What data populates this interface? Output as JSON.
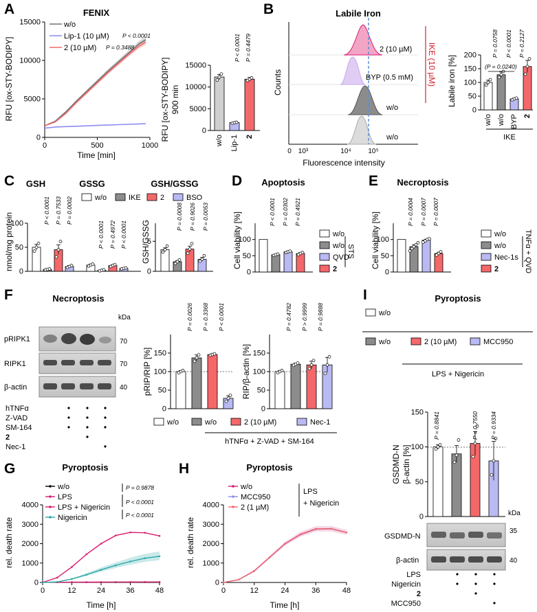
{
  "colors": {
    "wo": "#ffffff",
    "grey": "#8c8c8c",
    "red": "#f4686a",
    "lav": "#b9b9f3",
    "pink": "#d9196f",
    "teal": "#2aa7a7",
    "ikeRed": "#d21f2a",
    "blot": "#cfcfcf"
  },
  "panels": {
    "A": {
      "letter": "A",
      "title": "FENIX"
    },
    "B": {
      "letter": "B",
      "title": "Labile Iron"
    },
    "C": {
      "letter": "C",
      "title": "GSH",
      "title2": "GSSG",
      "title3": "GSH/GSSG"
    },
    "D": {
      "letter": "D",
      "title": "Apoptosis"
    },
    "E": {
      "letter": "E",
      "title": "Necroptosis"
    },
    "F": {
      "letter": "F",
      "title": "Necroptosis"
    },
    "G": {
      "letter": "G",
      "title": "Pyroptosis"
    },
    "H": {
      "letter": "H",
      "title": "Pyroptosis"
    },
    "I": {
      "letter": "I",
      "title": "Pyroptosis"
    }
  },
  "A": {
    "ylabel": "RFU [ox-STY-BODIPY]",
    "xlabel": "Time [min]",
    "legend": [
      "w/o",
      "Lip-1 (10 µM)",
      "2 (10 µM)"
    ],
    "legend_p": [
      "P < 0.0001",
      "P = 0.3488"
    ],
    "bar_ylabel": "RFU [ox-STY-BODIPY]",
    "bar_ylabel2": "900 min",
    "bar_cats": [
      "w/o",
      "Lip-1",
      "2"
    ],
    "bar_p": [
      "P < 0.0001",
      "P = 0.4479"
    ]
  },
  "B": {
    "hist_labels": [
      "2 (10 µM)",
      "BYP (0.5 mM)",
      "w/o",
      "w/o"
    ],
    "counts": "Counts",
    "xlabel": "Fluorescence intensity",
    "ike_vertical": "IKE (10 µM)",
    "bar_ylabel": "Labile iron [%]",
    "bar_cats": [
      "w/o",
      "w/o",
      "BYP",
      "2"
    ],
    "ike": "IKE",
    "bar_p": [
      "P = 0.0758",
      "P < 0.0001",
      "P = 0.2127"
    ],
    "bracket_p": "(P = 0.0240)"
  },
  "C": {
    "legend": [
      "w/o",
      "IKE",
      "2",
      "BSO"
    ],
    "ylabel": "nmol/mg protein",
    "ylabel2": "GSH/GSSG",
    "p_gsh": [
      "P < 0.0001",
      "P = 0.7533",
      "P = 0.0002"
    ],
    "p_gssg": [
      "P < 0.0001",
      "P = 0.4972",
      "P < 0.0001"
    ],
    "p_ratio": [
      "P = 0.0008",
      "P = 0.9026",
      "P = 0.0053"
    ]
  },
  "D": {
    "ylabel": "Cell viability [%]",
    "p": [
      "P < 0.0001",
      "P = 0.0302",
      "P = 0.4921"
    ],
    "legend": [
      "w/o",
      "w/o",
      "QVD",
      "2"
    ],
    "treat": "STS"
  },
  "E": {
    "ylabel": "Cell viability [%]",
    "p": [
      "P = 0.0004",
      "P = 0.0007",
      "P = 0.0007"
    ],
    "legend": [
      "w/o",
      "w/o",
      "Nec-1s",
      "2"
    ],
    "treat": "TNFα + QVD"
  },
  "F": {
    "rows": [
      "pRIPK1",
      "RIPK1",
      "β-actin"
    ],
    "kda": "kDa",
    "mw": [
      "70",
      "70",
      "40"
    ],
    "treat_labels": [
      "hTNFα",
      "Z-VAD",
      "SM-164",
      "2",
      "Nec-1"
    ],
    "plot1_ylabel": "pRIP/RIP [%]",
    "plot2_ylabel": "RIP/β-actin [%]",
    "p1": [
      "P = 0.0026",
      "P = 0.3368",
      "P < 0.0001"
    ],
    "p2": [
      "P = 0.4782",
      "P > 0.9999",
      "P = 0.9888"
    ],
    "legend": [
      "w/o",
      "w/o",
      "2 (10 µM)",
      "Nec-1"
    ],
    "treat": "hTNFα + Z-VAD + SM-164"
  },
  "G": {
    "ylabel": "rel. death rate",
    "xlabel": "Time [h]",
    "legend": [
      "w/o",
      "LPS",
      "LPS + Nigericin",
      "Nigericin"
    ],
    "p": [
      "P = 0.9878",
      "P < 0.0001",
      "P < 0.0001"
    ]
  },
  "H": {
    "ylabel": "rel. death rate",
    "xlabel": "Time [h]",
    "legend": [
      "w/o",
      "MCC950",
      "2 (1 µM)"
    ],
    "treat1": "LPS",
    "treat2": "+ Nigericin"
  },
  "I": {
    "legend": [
      "w/o",
      "w/o",
      "2 (10 µM)",
      "MCC950"
    ],
    "treat": "LPS + Nigericin",
    "ylabel": "GSDMD-N",
    "ylabel2": "β-actin [%]",
    "p": [
      "P = 0.8841",
      "P = 0.7550",
      "P = 0.9334"
    ],
    "kda": "kDa",
    "blot_rows": [
      "GSDMD-N",
      "β-actin"
    ],
    "mw": [
      "35",
      "40"
    ],
    "treat_labels": [
      "LPS",
      "Nigericin",
      "2",
      "MCC950"
    ]
  },
  "chart_data": [
    {
      "id": "A-kinetics",
      "type": "line",
      "title": "FENIX",
      "xlabel": "Time [min]",
      "ylabel": "RFU [ox-STY-BODIPY]",
      "xlim": [
        0,
        1000
      ],
      "ylim": [
        0,
        15000
      ],
      "series": [
        {
          "name": "w/o",
          "x": [
            0,
            100,
            200,
            300,
            400,
            500,
            600,
            700,
            800,
            900,
            960
          ],
          "y": [
            1500,
            2100,
            3300,
            4700,
            6000,
            7300,
            8600,
            9800,
            11000,
            12200,
            12700
          ]
        },
        {
          "name": "Lip-1 (10 µM)",
          "x": [
            0,
            100,
            200,
            300,
            400,
            500,
            600,
            700,
            800,
            900,
            960
          ],
          "y": [
            1200,
            1350,
            1400,
            1450,
            1500,
            1550,
            1600,
            1650,
            1700,
            1750,
            1780
          ]
        },
        {
          "name": "2 (10 µM)",
          "x": [
            0,
            100,
            200,
            300,
            400,
            500,
            600,
            700,
            800,
            900,
            960
          ],
          "y": [
            1500,
            2000,
            3100,
            4500,
            5800,
            7100,
            8400,
            9600,
            10800,
            11900,
            12400
          ]
        }
      ]
    },
    {
      "id": "A-bar",
      "type": "bar",
      "categories": [
        "w/o",
        "Lip-1",
        "2"
      ],
      "values": [
        12300,
        1800,
        11800
      ],
      "ylim": [
        0,
        15000
      ]
    },
    {
      "id": "B-bar",
      "type": "bar",
      "categories": [
        "w/o",
        "w/o (IKE)",
        "BYP (IKE)",
        "2 (IKE)"
      ],
      "values": [
        100,
        128,
        40,
        158
      ],
      "ylim": [
        0,
        200
      ]
    },
    {
      "id": "C-bar",
      "type": "bar",
      "categories": [
        "GSH",
        "GSSG"
      ],
      "series": [
        {
          "name": "w/o",
          "values": [
            50,
            13
          ]
        },
        {
          "name": "IKE",
          "values": [
            4,
            2
          ]
        },
        {
          "name": "2",
          "values": [
            45,
            12
          ]
        },
        {
          "name": "BSO",
          "values": [
            10,
            6
          ]
        }
      ],
      "ylim": [
        0,
        100
      ]
    },
    {
      "id": "C-ratio",
      "type": "bar",
      "categories": [
        "w/o",
        "IKE",
        "2",
        "BSO"
      ],
      "values": [
        3.6,
        1.6,
        3.7,
        2.0
      ],
      "ylim": [
        0,
        8
      ]
    },
    {
      "id": "D-bar",
      "type": "bar",
      "categories": [
        "w/o",
        "w/o",
        "QVD",
        "2"
      ],
      "values": [
        100,
        53,
        62,
        57
      ],
      "ylim": [
        0,
        150
      ]
    },
    {
      "id": "E-bar",
      "type": "bar",
      "categories": [
        "w/o",
        "w/o",
        "Nec-1s",
        "2"
      ],
      "values": [
        100,
        78,
        98,
        57
      ],
      "ylim": [
        0,
        150
      ]
    },
    {
      "id": "F-pRIP",
      "type": "bar",
      "categories": [
        "w/o",
        "w/o",
        "2 (10 µM)",
        "Nec-1"
      ],
      "values": [
        100,
        137,
        146,
        28
      ],
      "ylim": [
        0,
        150
      ]
    },
    {
      "id": "F-RIP",
      "type": "bar",
      "categories": [
        "w/o",
        "w/o",
        "2 (10 µM)",
        "Nec-1"
      ],
      "values": [
        100,
        120,
        118,
        118
      ],
      "ylim": [
        0,
        150
      ]
    },
    {
      "id": "G-line",
      "type": "line",
      "xlabel": "Time [h]",
      "ylabel": "rel. death rate",
      "xlim": [
        0,
        48
      ],
      "ylim": [
        0,
        4000
      ],
      "series": [
        {
          "name": "w/o",
          "x": [
            0,
            6,
            12,
            18,
            24,
            30,
            36,
            42,
            48
          ],
          "y": [
            10,
            10,
            12,
            12,
            14,
            14,
            16,
            16,
            18
          ]
        },
        {
          "name": "LPS",
          "x": [
            0,
            6,
            12,
            18,
            24,
            30,
            36,
            42,
            48
          ],
          "y": [
            10,
            12,
            14,
            16,
            18,
            20,
            22,
            24,
            26
          ]
        },
        {
          "name": "LPS + Nigericin",
          "x": [
            0,
            6,
            12,
            18,
            24,
            30,
            36,
            42,
            48
          ],
          "y": [
            0,
            250,
            800,
            1450,
            2000,
            2420,
            2580,
            2560,
            2400
          ]
        },
        {
          "name": "Nigericin",
          "x": [
            0,
            6,
            12,
            18,
            24,
            30,
            36,
            42,
            48
          ],
          "y": [
            0,
            30,
            180,
            400,
            650,
            880,
            1080,
            1250,
            1350
          ]
        }
      ]
    },
    {
      "id": "H-line",
      "type": "line",
      "xlabel": "Time [h]",
      "ylabel": "rel. death rate",
      "xlim": [
        0,
        48
      ],
      "ylim": [
        0,
        4000
      ],
      "series": [
        {
          "name": "w/o",
          "x": [
            0,
            6,
            12,
            18,
            24,
            30,
            36,
            42,
            48
          ],
          "y": [
            0,
            150,
            600,
            1300,
            2000,
            2480,
            2760,
            2770,
            2580
          ]
        },
        {
          "name": "MCC950",
          "x": [
            0,
            6,
            12,
            18,
            24,
            30,
            36,
            42,
            48
          ],
          "y": [
            0,
            140,
            580,
            1280,
            1980,
            2460,
            2740,
            2760,
            2570
          ]
        },
        {
          "name": "2 (1 µM)",
          "x": [
            0,
            6,
            12,
            18,
            24,
            30,
            36,
            42,
            48
          ],
          "y": [
            0,
            145,
            590,
            1290,
            1990,
            2470,
            2750,
            2765,
            2575
          ]
        }
      ]
    },
    {
      "id": "I-bar",
      "type": "bar",
      "categories": [
        "w/o",
        "w/o",
        "2 (10 µM)",
        "MCC950"
      ],
      "values": [
        100,
        90,
        105,
        80
      ],
      "ylim": [
        0,
        150
      ]
    }
  ]
}
